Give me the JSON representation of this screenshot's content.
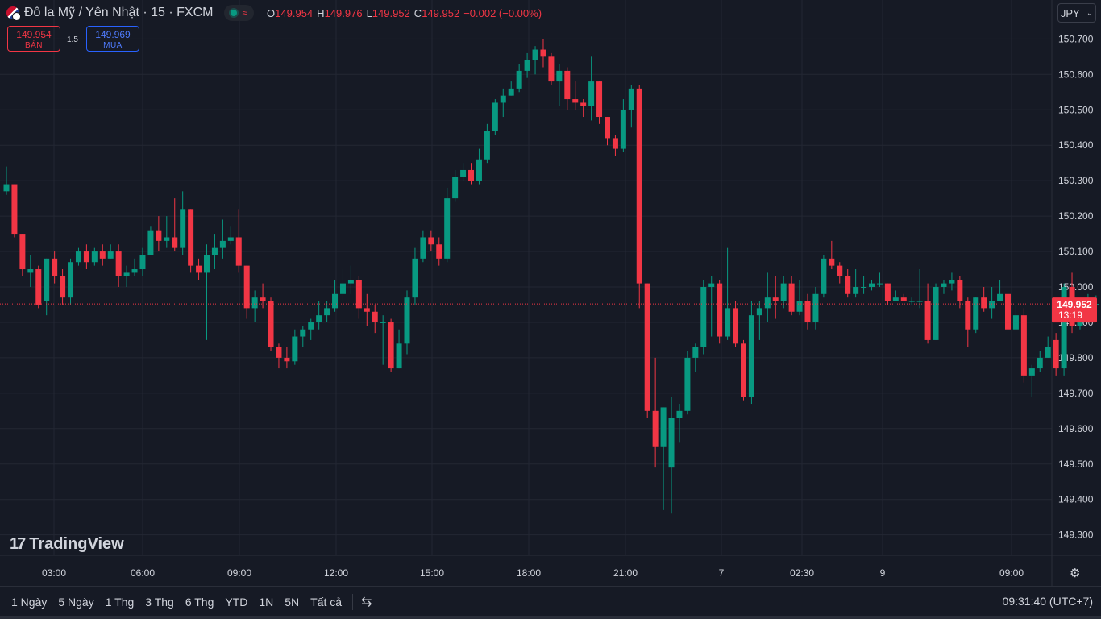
{
  "header": {
    "title": "Đô la Mỹ / Yên Nhật · 15 · FXCM",
    "status_icon": "market-open-dot",
    "ohlc": {
      "o_label": "O",
      "o": "149.954",
      "h_label": "H",
      "h": "149.976",
      "l_label": "L",
      "l": "149.952",
      "c_label": "C",
      "c": "149.952",
      "change": "−0.002 (−0.00%)"
    }
  },
  "trade": {
    "sell_price": "149.954",
    "sell_label": "BÁN",
    "spread": "1.5",
    "buy_price": "149.969",
    "buy_label": "MUA"
  },
  "currency_button": {
    "label": "JPY"
  },
  "logo": {
    "text": "TradingView"
  },
  "last_price": {
    "value": "149.952",
    "countdown": "13:19"
  },
  "bottom_bar": {
    "ranges": [
      "1 Ngày",
      "5 Ngày",
      "1 Thg",
      "3 Thg",
      "6 Thg",
      "YTD",
      "1N",
      "5N",
      "Tất cả"
    ],
    "clock": "09:31:40 (UTC+7)"
  },
  "colors": {
    "up": "#089981",
    "down": "#f23645",
    "background": "#161a25",
    "grid": "#232733"
  },
  "chart_data": {
    "type": "candlestick",
    "title": "Đô la Mỹ / Yên Nhật · 15 · FXCM",
    "y_ticks": [
      "150.700",
      "150.600",
      "150.500",
      "150.400",
      "150.300",
      "150.200",
      "150.100",
      "150.000",
      "149.900",
      "149.800",
      "149.700",
      "149.600",
      "149.500",
      "149.400",
      "149.300"
    ],
    "x_ticks": [
      "03:00",
      "06:00",
      "09:00",
      "12:00",
      "15:00",
      "18:00",
      "21:00",
      "7",
      "02:30",
      "9",
      "09:00"
    ],
    "ylim": [
      149.225,
      150.76
    ],
    "last_price": 149.952,
    "candles": [
      [
        150.27,
        150.29,
        150.34,
        150.26
      ],
      [
        150.29,
        150.15,
        150.29,
        150.14
      ],
      [
        150.15,
        150.05,
        150.15,
        150.03
      ],
      [
        150.04,
        150.05,
        150.09,
        150.0
      ],
      [
        150.05,
        149.95,
        150.06,
        149.94
      ],
      [
        149.96,
        150.08,
        150.08,
        149.92
      ],
      [
        150.08,
        150.03,
        150.1,
        150.01
      ],
      [
        150.03,
        149.97,
        150.05,
        149.95
      ],
      [
        149.97,
        150.07,
        150.08,
        149.95
      ],
      [
        150.07,
        150.1,
        150.11,
        150.06
      ],
      [
        150.1,
        150.07,
        150.12,
        150.05
      ],
      [
        150.07,
        150.1,
        150.11,
        150.06
      ],
      [
        150.1,
        150.08,
        150.12,
        150.06
      ],
      [
        150.08,
        150.1,
        150.12,
        150.08
      ],
      [
        150.1,
        150.03,
        150.12,
        150.0
      ],
      [
        150.03,
        150.04,
        150.06,
        150.0
      ],
      [
        150.04,
        150.05,
        150.08,
        150.03
      ],
      [
        150.05,
        150.09,
        150.11,
        150.03
      ],
      [
        150.09,
        150.16,
        150.17,
        150.09
      ],
      [
        150.16,
        150.13,
        150.2,
        150.1
      ],
      [
        150.13,
        150.14,
        150.2,
        150.11
      ],
      [
        150.14,
        150.11,
        150.25,
        150.1
      ],
      [
        150.11,
        150.22,
        150.27,
        150.09
      ],
      [
        150.22,
        150.06,
        150.22,
        150.04
      ],
      [
        150.06,
        150.04,
        150.08,
        150.02
      ],
      [
        150.04,
        150.09,
        150.12,
        149.85
      ],
      [
        150.09,
        150.11,
        150.15,
        150.05
      ],
      [
        150.11,
        150.13,
        150.19,
        150.08
      ],
      [
        150.13,
        150.14,
        150.17,
        150.12
      ],
      [
        150.14,
        150.06,
        150.22,
        150.04
      ],
      [
        150.06,
        149.94,
        150.06,
        149.91
      ],
      [
        149.94,
        149.97,
        149.99,
        149.9
      ],
      [
        149.97,
        149.96,
        150.01,
        149.94
      ],
      [
        149.96,
        149.83,
        149.97,
        149.82
      ],
      [
        149.83,
        149.8,
        149.84,
        149.77
      ],
      [
        149.8,
        149.79,
        149.83,
        149.77
      ],
      [
        149.79,
        149.86,
        149.88,
        149.78
      ],
      [
        149.86,
        149.88,
        149.89,
        149.83
      ],
      [
        149.88,
        149.9,
        149.91,
        149.85
      ],
      [
        149.9,
        149.92,
        149.96,
        149.88
      ],
      [
        149.92,
        149.94,
        149.96,
        149.9
      ],
      [
        149.94,
        149.98,
        150.02,
        149.93
      ],
      [
        149.98,
        150.01,
        150.05,
        149.96
      ],
      [
        150.01,
        150.02,
        150.06,
        149.98
      ],
      [
        150.02,
        149.94,
        150.03,
        149.91
      ],
      [
        149.94,
        149.93,
        149.98,
        149.89
      ],
      [
        149.93,
        149.9,
        149.95,
        149.87
      ],
      [
        149.9,
        149.9,
        149.92,
        149.78
      ],
      [
        149.9,
        149.77,
        149.91,
        149.76
      ],
      [
        149.77,
        149.84,
        149.88,
        149.77
      ],
      [
        149.84,
        149.97,
        149.99,
        149.81
      ],
      [
        149.97,
        150.08,
        150.11,
        149.95
      ],
      [
        150.08,
        150.14,
        150.16,
        150.07
      ],
      [
        150.14,
        150.12,
        150.16,
        150.1
      ],
      [
        150.12,
        150.08,
        150.14,
        150.06
      ],
      [
        150.08,
        150.25,
        150.28,
        150.07
      ],
      [
        150.25,
        150.31,
        150.33,
        150.24
      ],
      [
        150.31,
        150.33,
        150.35,
        150.3
      ],
      [
        150.33,
        150.3,
        150.35,
        150.29
      ],
      [
        150.3,
        150.36,
        150.39,
        150.29
      ],
      [
        150.36,
        150.44,
        150.46,
        150.35
      ],
      [
        150.44,
        150.52,
        150.53,
        150.43
      ],
      [
        150.52,
        150.54,
        150.56,
        150.48
      ],
      [
        150.54,
        150.56,
        150.58,
        150.54
      ],
      [
        150.56,
        150.61,
        150.63,
        150.55
      ],
      [
        150.61,
        150.64,
        150.66,
        150.59
      ],
      [
        150.64,
        150.67,
        150.68,
        150.6
      ],
      [
        150.67,
        150.65,
        150.7,
        150.62
      ],
      [
        150.65,
        150.58,
        150.66,
        150.57
      ],
      [
        150.58,
        150.61,
        150.63,
        150.51
      ],
      [
        150.61,
        150.53,
        150.62,
        150.5
      ],
      [
        150.53,
        150.52,
        150.58,
        150.5
      ],
      [
        150.52,
        150.51,
        150.53,
        150.48
      ],
      [
        150.51,
        150.58,
        150.65,
        150.47
      ],
      [
        150.58,
        150.48,
        150.58,
        150.46
      ],
      [
        150.48,
        150.42,
        150.48,
        150.4
      ],
      [
        150.42,
        150.39,
        150.43,
        150.37
      ],
      [
        150.39,
        150.5,
        150.53,
        150.38
      ],
      [
        150.5,
        150.56,
        150.57,
        150.45
      ],
      [
        150.56,
        150.01,
        150.57,
        149.94
      ],
      [
        150.01,
        149.65,
        150.01,
        149.63
      ],
      [
        149.65,
        149.55,
        149.8,
        149.49
      ],
      [
        149.55,
        149.66,
        149.66,
        149.37
      ],
      [
        149.49,
        149.63,
        149.69,
        149.36
      ],
      [
        149.63,
        149.65,
        149.67,
        149.56
      ],
      [
        149.65,
        149.8,
        149.82,
        149.64
      ],
      [
        149.8,
        149.83,
        149.84,
        149.76
      ],
      [
        149.83,
        150.0,
        150.02,
        149.81
      ],
      [
        150.0,
        150.01,
        150.03,
        149.86
      ],
      [
        150.01,
        149.86,
        150.02,
        149.84
      ],
      [
        149.86,
        149.94,
        150.11,
        149.85
      ],
      [
        149.94,
        149.84,
        149.96,
        149.83
      ],
      [
        149.84,
        149.69,
        149.85,
        149.68
      ],
      [
        149.69,
        149.92,
        149.96,
        149.67
      ],
      [
        149.92,
        149.94,
        149.96,
        149.85
      ],
      [
        149.94,
        149.97,
        150.04,
        149.9
      ],
      [
        149.97,
        149.96,
        150.03,
        149.91
      ],
      [
        149.96,
        150.01,
        150.03,
        149.94
      ],
      [
        150.01,
        149.93,
        150.03,
        149.92
      ],
      [
        149.93,
        149.96,
        150.02,
        149.92
      ],
      [
        149.96,
        149.9,
        149.98,
        149.88
      ],
      [
        149.9,
        149.98,
        150.0,
        149.88
      ],
      [
        149.98,
        150.08,
        150.09,
        149.97
      ],
      [
        150.08,
        150.06,
        150.13,
        150.05
      ],
      [
        150.06,
        150.03,
        150.07,
        150.01
      ],
      [
        150.03,
        149.98,
        150.05,
        149.97
      ],
      [
        149.98,
        150.0,
        150.05,
        149.97
      ],
      [
        150.0,
        150.0,
        150.03,
        149.98
      ],
      [
        150.0,
        150.01,
        150.02,
        149.99
      ],
      [
        150.01,
        150.01,
        150.04,
        150.0
      ],
      [
        150.01,
        149.96,
        150.01,
        149.95
      ],
      [
        149.96,
        149.97,
        149.99,
        149.96
      ],
      [
        149.97,
        149.96,
        149.98,
        149.96
      ],
      [
        149.96,
        149.96,
        149.97,
        149.95
      ],
      [
        149.96,
        149.96,
        150.05,
        149.94
      ],
      [
        149.96,
        149.85,
        150.01,
        149.84
      ],
      [
        149.85,
        150.0,
        150.01,
        149.85
      ],
      [
        150.0,
        150.01,
        150.02,
        149.98
      ],
      [
        150.01,
        150.02,
        150.04,
        149.99
      ],
      [
        150.02,
        149.96,
        150.03,
        149.94
      ],
      [
        149.96,
        149.88,
        149.97,
        149.83
      ],
      [
        149.88,
        149.97,
        149.97,
        149.87
      ],
      [
        149.97,
        149.94,
        150.0,
        149.93
      ],
      [
        149.94,
        149.96,
        150.0,
        149.91
      ],
      [
        149.96,
        149.98,
        150.02,
        149.96
      ],
      [
        149.98,
        149.88,
        150.03,
        149.86
      ],
      [
        149.88,
        149.92,
        149.95,
        149.89
      ],
      [
        149.92,
        149.75,
        149.94,
        149.73
      ],
      [
        149.75,
        149.77,
        149.78,
        149.69
      ],
      [
        149.77,
        149.8,
        149.82,
        149.76
      ],
      [
        149.8,
        149.83,
        149.86,
        149.8
      ],
      [
        149.85,
        149.77,
        149.87,
        149.75
      ],
      [
        149.77,
        150.0,
        150.01,
        149.75
      ],
      [
        150.0,
        149.89,
        150.04,
        149.87
      ],
      [
        149.89,
        149.91,
        149.94,
        149.88
      ],
      [
        149.92,
        149.95,
        149.98,
        149.9
      ],
      [
        149.95,
        149.952,
        149.976,
        149.952
      ]
    ]
  }
}
